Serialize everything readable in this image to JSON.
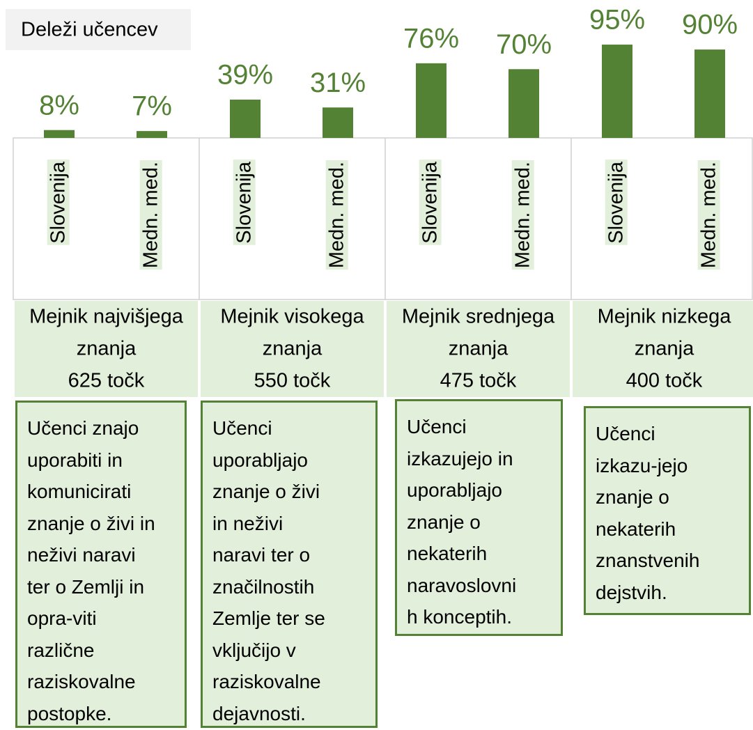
{
  "chart_data": {
    "type": "bar",
    "title": "Deleži učencev",
    "categories": [
      "Slovenija",
      "Medn. med.",
      "Slovenija",
      "Medn. med.",
      "Slovenija",
      "Medn. med.",
      "Slovenija",
      "Medn. med."
    ],
    "values": [
      8,
      7,
      39,
      31,
      76,
      70,
      95,
      90
    ],
    "value_labels": [
      "8%",
      "7%",
      "39%",
      "31%",
      "76%",
      "70%",
      "95%",
      "90%"
    ],
    "color": "#548235",
    "ylim": [
      0,
      100
    ],
    "groups": [
      {
        "name": [
          "Mejnik najvišjega",
          "znanja",
          "625 točk"
        ],
        "description": [
          "Učenci znajo",
          "uporabiti in",
          "komunicirati",
          "znanje o živi in",
          "neživi naravi",
          "ter o Zemlji in",
          "opra-viti",
          "različne",
          "raziskovalne",
          "postopke."
        ]
      },
      {
        "name": [
          "Mejnik visokega",
          "znanja",
          "550 točk"
        ],
        "description": [
          "Učenci",
          "uporabljajo",
          "znanje o živi",
          "in neživi",
          "naravi ter o",
          "značilnostih",
          "Zemlje ter se",
          "vključijo v",
          "raziskovalne",
          "dejavnosti."
        ]
      },
      {
        "name": [
          "Mejnik srednjega",
          "znanja",
          "475 točk"
        ],
        "description": [
          "Učenci",
          "izkazujejo in",
          "uporabljajo",
          "znanje o",
          "nekaterih",
          "naravoslovni",
          "h konceptih."
        ]
      },
      {
        "name": [
          "Mejnik nizkega",
          "znanja",
          "400 točk"
        ],
        "description": [
          "Učenci",
          "izkazu-jejo",
          "znanje o",
          "nekaterih",
          "znanstvenih",
          "dejstvih."
        ]
      }
    ]
  }
}
